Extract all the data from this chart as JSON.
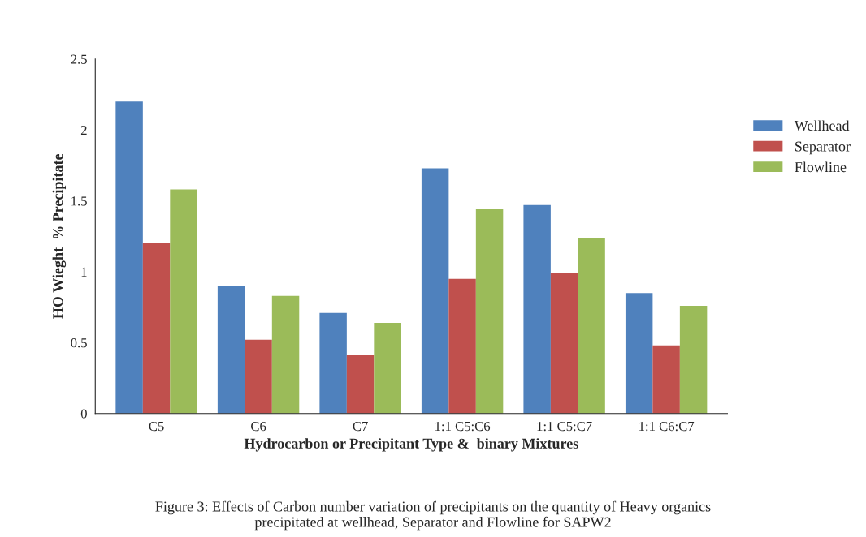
{
  "chart_data": {
    "type": "bar",
    "xlabel": "Hydrocarbon or Precipitant Type &  binary Mixtures",
    "ylabel": "HO Wieght  % Precipitate",
    "categories": [
      "C5",
      "C6",
      "C7",
      "1:1 C5:C6",
      "1:1 C5:C7",
      "1:1 C6:C7"
    ],
    "series": [
      {
        "name": "Wellhead",
        "color": "#4f81bd",
        "values": [
          2.2,
          0.9,
          0.71,
          1.73,
          1.47,
          0.85
        ]
      },
      {
        "name": "Separator",
        "color": "#c0504d",
        "values": [
          1.2,
          0.52,
          0.41,
          0.95,
          0.99,
          0.48
        ]
      },
      {
        "name": "Flowline",
        "color": "#9bbb59",
        "values": [
          1.58,
          0.83,
          0.64,
          1.44,
          1.24,
          0.76
        ]
      }
    ],
    "ylim": [
      0,
      2.5
    ],
    "yticks": [
      0,
      0.5,
      1,
      1.5,
      2,
      2.5
    ],
    "grid": false,
    "legend": "right",
    "annotations": [
      "Figure 3: Effects of Carbon number variation of precipitants on the quantity of Heavy organics\nprecipitated at wellhead, Separator and Flowline for SAPW2"
    ]
  }
}
